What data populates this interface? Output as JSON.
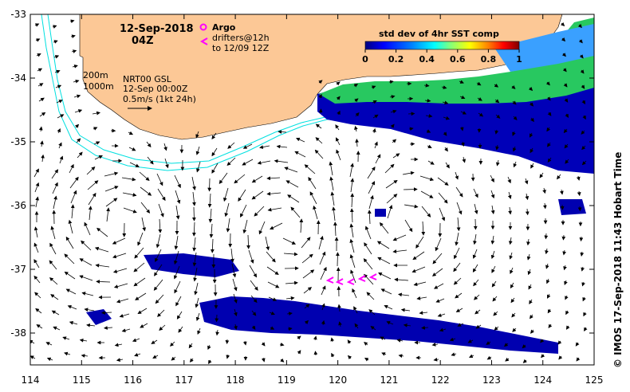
{
  "header": {
    "date": "12-Sep-2018",
    "time": "04Z"
  },
  "legend": {
    "argo_label": "Argo",
    "drifter_label": "drifters@12h",
    "drifter_label2": "to 12/09 12Z",
    "argo_color": "#ff00ff",
    "drifter_color": "#ff00ff"
  },
  "colorbar": {
    "title": "std dev of 4hr SST comp",
    "ticks": [
      "0",
      "0.2",
      "0.4",
      "0.6",
      "0.8",
      "1"
    ],
    "colors": [
      "#00007f",
      "#0000ff",
      "#007fff",
      "#00ffff",
      "#7fff7f",
      "#ffff00",
      "#ff7f00",
      "#ff0000",
      "#7f0000"
    ]
  },
  "info": {
    "iso1": "200m",
    "iso2": "1000m",
    "line1": "NRT00 GSL",
    "line2": "12-Sep 00:00Z",
    "line3": "0.5m/s (1kt 24h)"
  },
  "credit": "© IMOS 17-Sep-2018 11:43 Hobart Time",
  "axes": {
    "lon_ticks": [
      "114",
      "115",
      "116",
      "117",
      "118",
      "119",
      "120",
      "121",
      "122",
      "123",
      "124",
      "125"
    ],
    "lat_ticks": [
      "-33",
      "-34",
      "-35",
      "-36",
      "-37",
      "-38"
    ]
  },
  "colors": {
    "land": "#fcc896",
    "isobath": "#00e0e0",
    "frame": "#000000"
  }
}
